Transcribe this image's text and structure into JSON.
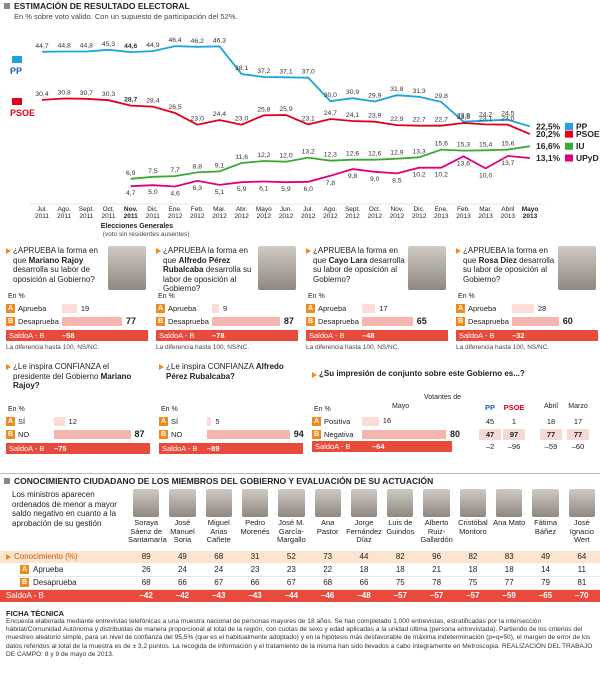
{
  "chart_data": {
    "type": "line",
    "title": "ESTIMACIÓN DE RESULTADO ELECTORAL",
    "subtitle": "En % sobre voto válido. Con un supuesto de participación del 52%.",
    "categories": [
      "Jul. 2011",
      "Ago. 2011",
      "Sept. 2011",
      "Oct. 2011",
      "Nov. 2011",
      "Dic. 2011",
      "Ene. 2012",
      "Feb. 2012",
      "Mar. 2012",
      "Abr. 2012",
      "Mayo 2012",
      "Jun. 2012",
      "Jul. 2012",
      "Ago. 2012",
      "Sept. 2012",
      "Oct. 2012",
      "Nov. 2012",
      "Dic. 2012",
      "Ene. 2013",
      "Feb. 2013",
      "Mar. 2013",
      "Abril 2013",
      "Mayo 2013"
    ],
    "annotation": "Elecciones Generales",
    "annotation_note": "(voto sin residentes ausentes)",
    "series": [
      {
        "name": "PP",
        "color": "#1ea3dc",
        "values": [
          44.7,
          44.8,
          44.8,
          45.3,
          44.6,
          44.9,
          46.4,
          46.2,
          46.3,
          38.1,
          37.2,
          37.1,
          37.0,
          30.0,
          30.9,
          29.9,
          31.8,
          31.3,
          29.8,
          23.9,
          24.2,
          24.5,
          22.5
        ],
        "value_labels": [
          "44,7",
          "44,8",
          "44,8",
          "45,3",
          "44,6",
          "44,9",
          "46,4",
          "46,2",
          "46,3",
          "38,1",
          "37,2",
          "37,1",
          "37,0",
          "30,0",
          "30,9",
          "29,9",
          "31,8",
          "31,3",
          "29,8",
          "23,9",
          "24,2",
          "24,5",
          "22,5%"
        ]
      },
      {
        "name": "PSOE",
        "color": "#e2001a",
        "values": [
          30.4,
          30.8,
          30.7,
          30.3,
          28.7,
          28.4,
          26.5,
          23.0,
          24.4,
          23.0,
          25.8,
          25.9,
          23.1,
          24.7,
          24.1,
          23.9,
          22.9,
          22.7,
          22.7,
          23.5,
          23.1,
          23.0,
          20.2
        ],
        "value_labels": [
          "30,4",
          "30,8",
          "30,7",
          "30,3",
          "28,7",
          "28,4",
          "26,5",
          "23,0",
          "24,4",
          "23,0",
          "25,8",
          "25,9",
          "23,1",
          "24,7",
          "24,1",
          "23,9",
          "22,9",
          "22,7",
          "22,7",
          "23,5",
          "23,1",
          "23,0",
          "20,2%"
        ]
      },
      {
        "name": "IU",
        "color": "#3aa935",
        "values": [
          null,
          null,
          null,
          null,
          6.9,
          7.5,
          7.7,
          8.8,
          9.1,
          11.6,
          12.2,
          12.0,
          13.2,
          12.3,
          12.6,
          12.6,
          12.9,
          13.3,
          15.6,
          15.3,
          15.4,
          15.6,
          16.6
        ],
        "value_labels": [
          null,
          null,
          null,
          null,
          "6,9",
          "7,5",
          "7,7",
          "8,8",
          "9,1",
          "11,6",
          "12,2",
          "12,0",
          "13,2",
          "12,3",
          "12,6",
          "12,6",
          "12,9",
          "13,3",
          "15,6",
          "15,3",
          "15,4",
          "15,6",
          "16,6%"
        ]
      },
      {
        "name": "UPyD",
        "color": "#e0007a",
        "values": [
          null,
          null,
          null,
          null,
          4.7,
          5.0,
          4.6,
          6.3,
          5.1,
          5.9,
          6.1,
          5.9,
          6.0,
          7.8,
          9.8,
          9.0,
          8.5,
          10.2,
          10.2,
          13.6,
          10.0,
          13.7,
          13.1
        ],
        "value_labels": [
          null,
          null,
          null,
          null,
          "4,7",
          "5,0",
          "4,6",
          "6,3",
          "5,1",
          "5,9",
          "6,1",
          "5,9",
          "6,0",
          "7,8",
          "9,8",
          "9,0",
          "8,5",
          "10,2",
          "10,2",
          "13,6",
          "10,0",
          "13,7",
          "13,1%"
        ]
      }
    ]
  },
  "approval": [
    {
      "question_start": "¿APRUEBA la forma en que",
      "name": "Mariano Rajoy",
      "question_end": "desarrolla su labor de oposición al Gobierno?",
      "unit": "En %",
      "rows": [
        {
          "letter": "A",
          "label": "Aprueba",
          "value": 19
        },
        {
          "letter": "B",
          "label": "Desaprueba",
          "value": 77
        }
      ],
      "balance": {
        "label": "SaldoA - B",
        "value": -58,
        "value_label": "–58"
      },
      "note": "La diferencia hasta 100, NS/NC."
    },
    {
      "question_start": "¿APRUEBA la forma en que",
      "name": "Alfredo Pérez Rubalcaba",
      "question_end": "desarrolla su labor de oposición al Gobierno?",
      "unit": "En %",
      "rows": [
        {
          "letter": "A",
          "label": "Aprueba",
          "value": 9
        },
        {
          "letter": "B",
          "label": "Desaprueba",
          "value": 87
        }
      ],
      "balance": {
        "label": "SaldoA - B",
        "value": -78,
        "value_label": "–78"
      },
      "note": "La diferencia hasta 100, NS/NC."
    },
    {
      "question_start": "¿APRUEBA la forma en que",
      "name": "Cayo Lara",
      "question_end": "desarrolla su labor de oposición al Gobierno?",
      "unit": "En %",
      "rows": [
        {
          "letter": "A",
          "label": "Aprueba",
          "value": 17
        },
        {
          "letter": "B",
          "label": "Desaprueba",
          "value": 65
        }
      ],
      "balance": {
        "label": "SaldoA - B",
        "value": -48,
        "value_label": "–48"
      },
      "note": "La diferencia hasta 100, NS/NC."
    },
    {
      "question_start": "¿APRUEBA la forma en que",
      "name": "Rosa Díez",
      "question_end": "desarrolla su labor de oposición al Gobierno?",
      "unit": "En %",
      "rows": [
        {
          "letter": "A",
          "label": "Aprueba",
          "value": 28
        },
        {
          "letter": "B",
          "label": "Desaprueba",
          "value": 60
        }
      ],
      "balance": {
        "label": "SaldoA - B",
        "value": -32,
        "value_label": "–32"
      },
      "note": "La diferencia hasta 100, NS/NC."
    }
  ],
  "confidence": [
    {
      "question_start": "¿Le inspira CONFIANZA el presidente del Gobierno",
      "name": "Mariano Rajoy?",
      "unit": "En %",
      "rows": [
        {
          "letter": "A",
          "label": "SÍ",
          "value": 12
        },
        {
          "letter": "B",
          "label": "NO",
          "value": 87
        }
      ],
      "balance": {
        "label": "SaldoA - B",
        "value": -75,
        "value_label": "–75"
      }
    },
    {
      "question_start": "¿Le inspira CONFIANZA",
      "name": "Alfredo Pérez Rubalcaba?",
      "unit": "En %",
      "rows": [
        {
          "letter": "A",
          "label": "SÍ",
          "value": 5
        },
        {
          "letter": "B",
          "label": "NO",
          "value": 94
        }
      ],
      "balance": {
        "label": "SaldoA - B",
        "value": -89,
        "value_label": "–89"
      }
    }
  ],
  "impression": {
    "title": "¿Su impresión de conjunto sobre este Gobierno es...?",
    "unit": "En %",
    "current": "Mayo",
    "voters": "Votantes de",
    "parties": [
      "PP",
      "PSOE"
    ],
    "previous": [
      "Abril",
      "Marzo"
    ],
    "rows": [
      {
        "letter": "A",
        "label": "Positiva",
        "value": 16,
        "parties": [
          45,
          1
        ],
        "previous": [
          18,
          17
        ]
      },
      {
        "letter": "B",
        "label": "Negativa",
        "value": 80,
        "parties": [
          47,
          97
        ],
        "previous": [
          77,
          77
        ]
      }
    ],
    "balance": {
      "label": "SaldoA - B",
      "value": -64,
      "value_label": "–64",
      "parties": [
        -2,
        -96
      ],
      "party_labels": [
        "–2",
        "–96"
      ],
      "previous": [
        -59,
        -60
      ],
      "previous_labels": [
        "–59",
        "–60"
      ]
    }
  },
  "knowledge": {
    "title": "CONOCIMIENTO CIUDADANO DE LOS MIEMBROS DEL GOBIERNO Y EVALUACIÓN DE SU ACTUACIÓN",
    "intro": "Los ministros aparecen ordenados de menor a mayor saldo negativo en cuanto a la aprobación de su gestión",
    "ministers": [
      "Soraya Sáenz de Santamaría",
      "José Manuel Soria",
      "Miguel Arias Cañete",
      "Pedro Morenés",
      "José M. García-Margallo",
      "Ana Pastor",
      "Jorge Fernández Díaz",
      "Luis de Guindos",
      "Alberto Ruiz-Gallardón",
      "Cristóbal Montoro",
      "Ana Mato",
      "Fátima Báñez",
      "José Ignacio Wert"
    ],
    "rows": [
      {
        "label": "Conocimiento (%)",
        "values": [
          89,
          49,
          68,
          31,
          52,
          73,
          44,
          82,
          96,
          82,
          83,
          49,
          64
        ]
      },
      {
        "letter": "A",
        "label": "Aprueba",
        "values": [
          26,
          24,
          24,
          23,
          23,
          22,
          18,
          18,
          21,
          18,
          18,
          14,
          11
        ]
      },
      {
        "letter": "B",
        "label": "Desaprueba",
        "values": [
          68,
          66,
          67,
          66,
          67,
          68,
          66,
          75,
          78,
          75,
          77,
          79,
          81
        ]
      }
    ],
    "balance": {
      "label": "SaldoA - B",
      "values": [
        -42,
        -42,
        -43,
        -43,
        -44,
        -46,
        -48,
        -57,
        -57,
        -57,
        -59,
        -65,
        -70
      ],
      "value_labels": [
        "–42",
        "–42",
        "–43",
        "–43",
        "–44",
        "–46",
        "–48",
        "–57",
        "–57",
        "–57",
        "–59",
        "–65",
        "–70"
      ]
    }
  },
  "ficha": {
    "title": "FICHA TÉCNICA",
    "text": "Encuesta elaborada mediante entrevistas telefónicas a una muestra nacional de personas mayores de 18 años. Se han completado 1.000 entrevistas, estratificadas por la intersección hábitat/Comunidad Autónoma y distribuidas de manera proporcional al total de la región, con cuotas de sexo y edad aplicadas a la unidad última (persona entrevistada). Partiendo de los criterios del muestreo aleatorio simple, para un nivel de confianza del 95,5% (que es el habitualmente adoptado) y en la hipótesis más desfavorable de máxima indeterminación (p=q=50), el margen de error de los datos referidos al total de la muestra es de ± 3,2 puntos. La recogida de información y el tratamiento de la misma han sido llevados a cabo íntegramente en Metroscopia. REALIZACIÓN DEL TRABAJO DE CAMPO: 8 y 9 de mayo de 2013."
  }
}
